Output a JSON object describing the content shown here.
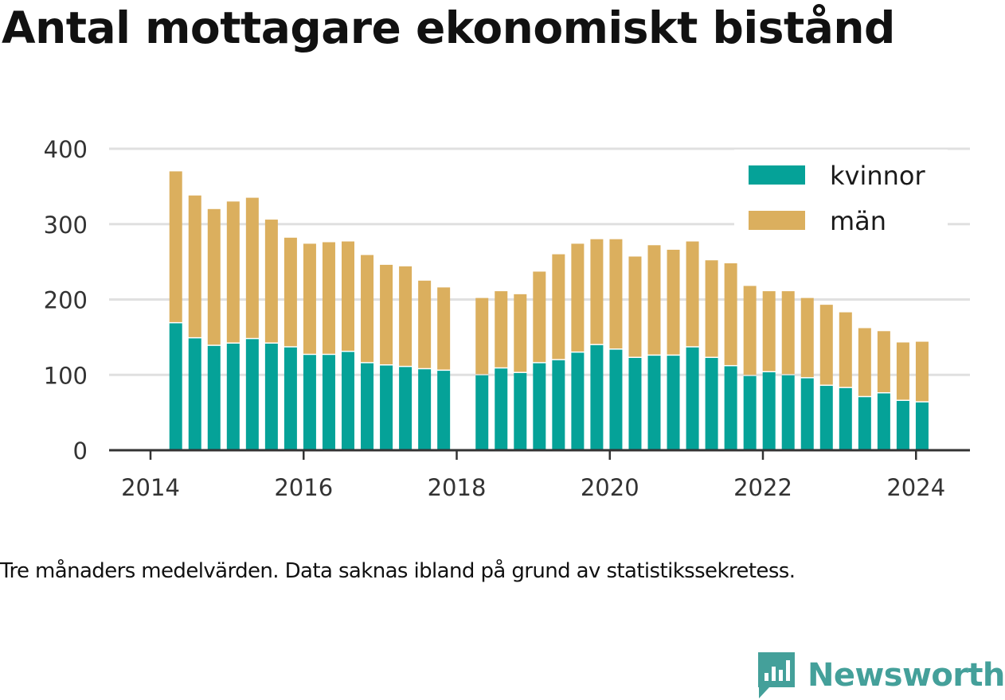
{
  "title": "Antal mottagare ekonomiskt bistånd",
  "caption": "Tre månaders medelvärden. Data saknas ibland på grund av statistikssekretess.",
  "brand": {
    "name": "Newsworthy",
    "color": "#44a09a",
    "icon": "newsworthy-logo-icon"
  },
  "colors": {
    "kvinnor": "#05a298",
    "man": "#dbaf5e",
    "grid": "#e0e0e0",
    "axis": "#333333"
  },
  "chart_data": {
    "type": "bar",
    "stacked": true,
    "title": "Antal mottagare ekonomiskt bistånd",
    "xlabel": "",
    "ylabel": "",
    "ylim": [
      0,
      400
    ],
    "yticks": [
      "0",
      "100",
      "200",
      "300",
      "400"
    ],
    "xticks": [
      "2014",
      "2016",
      "2018",
      "2020",
      "2022",
      "2024"
    ],
    "x_range": [
      2014.0,
      2024.3
    ],
    "grid": true,
    "legend_position": "top-right",
    "x": [
      2014.33,
      2014.58,
      2014.83,
      2015.08,
      2015.33,
      2015.58,
      2015.83,
      2016.08,
      2016.33,
      2016.58,
      2016.83,
      2017.08,
      2017.33,
      2017.58,
      2017.83,
      2018.33,
      2018.58,
      2018.83,
      2019.08,
      2019.33,
      2019.58,
      2019.83,
      2020.08,
      2020.33,
      2020.58,
      2020.83,
      2021.08,
      2021.33,
      2021.58,
      2021.83,
      2022.08,
      2022.33,
      2022.58,
      2022.83,
      2023.08,
      2023.33,
      2023.58,
      2023.83,
      2024.08
    ],
    "series": [
      {
        "name": "kvinnor",
        "values": [
          170,
          150,
          140,
          143,
          149,
          143,
          138,
          128,
          128,
          132,
          117,
          114,
          112,
          109,
          107,
          101,
          110,
          104,
          117,
          121,
          131,
          141,
          135,
          124,
          127,
          127,
          138,
          124,
          113,
          100,
          105,
          101,
          97,
          87,
          84,
          72,
          77,
          67,
          65
        ]
      },
      {
        "name": "män",
        "values": [
          200,
          188,
          180,
          187,
          186,
          163,
          144,
          146,
          148,
          145,
          142,
          132,
          132,
          116,
          109,
          101,
          101,
          103,
          120,
          139,
          143,
          139,
          145,
          133,
          145,
          139,
          139,
          128,
          135,
          118,
          106,
          110,
          105,
          106,
          99,
          90,
          81,
          76,
          79
        ]
      }
    ]
  }
}
